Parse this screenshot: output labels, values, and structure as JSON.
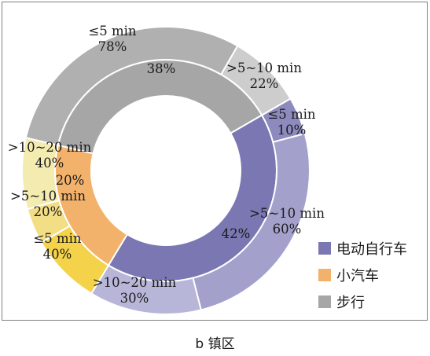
{
  "caption": "b 镇区",
  "chart_data": {
    "type": "pie",
    "subtype": "nested donut",
    "title": "",
    "legend": {
      "position": "bottom-right",
      "entries": [
        {
          "label": "电动自行车",
          "color": "#7a77b3"
        },
        {
          "label": "小汽车",
          "color": "#f2b26b"
        },
        {
          "label": "步行",
          "color": "#a6a6a6"
        }
      ]
    },
    "inner_ring": [
      {
        "category": "电动自行车",
        "value": 42,
        "label": "42%",
        "color": "#7a77b3"
      },
      {
        "category": "小汽车",
        "value": 20,
        "label": "20%",
        "color": "#f2b26b"
      },
      {
        "category": "步行",
        "value": 38,
        "label": "38%",
        "color": "#a6a6a6"
      }
    ],
    "outer_ring": [
      {
        "parent": "电动自行车",
        "segment": "≤5 min",
        "value": 10,
        "label": "≤5 min\n10%",
        "color": "#8d8abd"
      },
      {
        "parent": "电动自行车",
        "segment": ">5~10 min",
        "value": 60,
        "label": ">5~10 min\n60%",
        "color": "#a3a1cc"
      },
      {
        "parent": "电动自行车",
        "segment": ">10~20 min",
        "value": 30,
        "label": ">10~20 min\n30%",
        "color": "#b8b6d8"
      },
      {
        "parent": "小汽车",
        "segment": "≤5 min",
        "value": 40,
        "label": "≤5 min\n40%",
        "color": "#f4d34a"
      },
      {
        "parent": "小汽车",
        "segment": ">5~10 min",
        "value": 20,
        "label": ">5~10 min\n20%",
        "color": "#f2de85"
      },
      {
        "parent": "小汽车",
        "segment": ">10~20 min",
        "value": 40,
        "label": ">10~20 min\n40%",
        "color": "#f4ebb0"
      },
      {
        "parent": "步行",
        "segment": "≤5 min",
        "value": 78,
        "label": "≤5 min\n78%",
        "color": "#b0b0b0"
      },
      {
        "parent": "步行",
        "segment": ">5~10 min",
        "value": 22,
        "label": ">5~10 min\n22%",
        "color": "#cdcdcd"
      }
    ]
  }
}
